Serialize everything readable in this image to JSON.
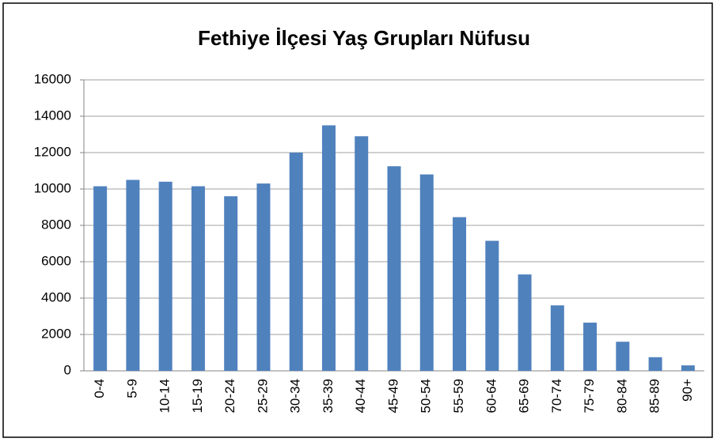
{
  "chart_data": {
    "type": "bar",
    "title": "Fethiye İlçesi Yaş Grupları Nüfusu",
    "categories": [
      "0-4",
      "5-9",
      "10-14",
      "15-19",
      "20-24",
      "25-29",
      "30-34",
      "35-39",
      "40-44",
      "45-49",
      "50-54",
      "55-59",
      "60-64",
      "65-69",
      "70-74",
      "75-79",
      "80-84",
      "85-89",
      "90+"
    ],
    "values": [
      10150,
      10500,
      10400,
      10150,
      9600,
      10300,
      12000,
      13500,
      12900,
      11250,
      10800,
      8450,
      7150,
      5300,
      3600,
      2650,
      1600,
      750,
      300
    ],
    "color": "#4f81bd",
    "ylim": [
      0,
      16000
    ],
    "yticks": [
      0,
      2000,
      4000,
      6000,
      8000,
      10000,
      12000,
      14000,
      16000
    ],
    "grid": true
  }
}
